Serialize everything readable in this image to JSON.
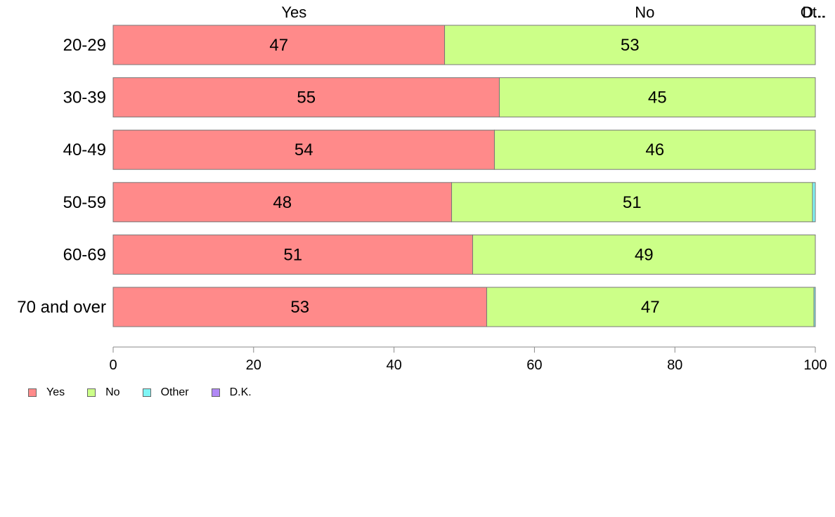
{
  "chart_data": {
    "type": "bar",
    "orientation": "horizontal",
    "stacked": true,
    "categories": [
      "20-29",
      "30-39",
      "40-49",
      "50-59",
      "60-69",
      "70 and over"
    ],
    "series": [
      {
        "name": "Yes",
        "color": "#ff8a8a",
        "values": [
          47.2,
          55.0,
          54.3,
          48.2,
          51.2,
          53.2
        ]
      },
      {
        "name": "No",
        "color": "#ccff88",
        "values": [
          52.8,
          45.0,
          45.7,
          51.4,
          48.8,
          46.6
        ]
      },
      {
        "name": "Other",
        "color": "#7ff5f5",
        "values": [
          0,
          0,
          0,
          0.4,
          0,
          0.2
        ]
      },
      {
        "name": "D.K.",
        "color": "#b088f5",
        "values": [
          0,
          0,
          0,
          0,
          0,
          0
        ]
      }
    ],
    "data_labels": [
      [
        "47",
        "53"
      ],
      [
        "55",
        "45"
      ],
      [
        "54",
        "46"
      ],
      [
        "48",
        "51"
      ],
      [
        "51",
        "49"
      ],
      [
        "53",
        "47"
      ]
    ],
    "top_labels": [
      "Yes",
      "No",
      "Ot..",
      "D..."
    ],
    "xlim": [
      0,
      100
    ],
    "xticks": [
      0,
      20,
      40,
      60,
      80,
      100
    ],
    "xlabel": "",
    "ylabel": "",
    "legend_position": "bottom-left",
    "grid": false
  }
}
